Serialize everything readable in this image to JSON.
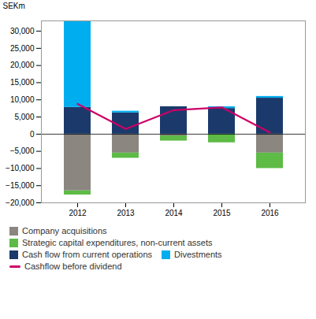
{
  "chart_data": {
    "type": "bar",
    "stacked": true,
    "categories": [
      2012,
      2013,
      2014,
      2015,
      2016
    ],
    "series": [
      {
        "name": "Company acquisitions",
        "color": "#8B8680",
        "values": [
          -16500,
          -5500,
          -500,
          0,
          -5500
        ]
      },
      {
        "name": "Strategic capital expenditures, non-current assets",
        "color": "#5DBB46",
        "values": [
          -1200,
          -1500,
          -1500,
          -2500,
          -4500
        ]
      },
      {
        "name": "Cash flow from current operations",
        "color": "#1B3A6B",
        "values": [
          7800,
          6200,
          8000,
          7500,
          10500
        ]
      },
      {
        "name": "Divestments",
        "color": "#00AEEF",
        "values": [
          25000,
          500,
          0,
          500,
          500
        ]
      },
      {
        "name": "Cashflow before dividend",
        "type": "line",
        "color": "#CC0066",
        "values": [
          8800,
          1500,
          7000,
          7800,
          500
        ]
      }
    ],
    "ylabel": "SEKm",
    "ylim": [
      -20000,
      33000
    ],
    "yticks": [
      {
        "value": -20000,
        "label": "−20,000"
      },
      {
        "value": -15000,
        "label": "−15,000"
      },
      {
        "value": -10000,
        "label": "−10,000"
      },
      {
        "value": -5000,
        "label": "−5,000"
      },
      0,
      {
        "value": 5000,
        "label": "5,000"
      },
      {
        "value": 10000,
        "label": "10,000"
      },
      {
        "value": 15000,
        "label": "15,000"
      },
      {
        "value": 20000,
        "label": "20,000"
      },
      {
        "value": 25000,
        "label": "25,000"
      },
      {
        "value": 30000,
        "label": "30,000"
      }
    ],
    "grid": false,
    "legend": "bottom"
  }
}
